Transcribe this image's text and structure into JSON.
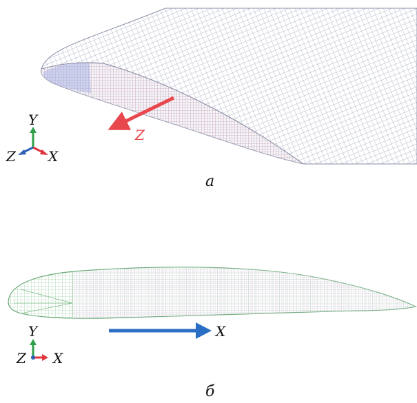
{
  "panel_a": {
    "label": "a",
    "flow_arrow": {
      "label": "Z",
      "color": "#e8474d"
    },
    "triad": {
      "y": "Y",
      "x": "X",
      "z": "Z"
    }
  },
  "panel_b": {
    "label": "б",
    "flow_arrow": {
      "label": "X",
      "color": "#2a6fc4"
    },
    "triad": {
      "y": "Y",
      "x": "X",
      "z": "Z"
    }
  },
  "colors": {
    "mesh_a": "#9aa0b8",
    "mesh_a_accent": "#c07a8a",
    "mesh_b": "#7fbf8a",
    "mesh_b_accent": "#b07ac0",
    "axis_y": "#2e9e4a",
    "axis_x": "#e0353d",
    "axis_z": "#2a5fb5",
    "leading_edge_fill": "#aab4e6"
  }
}
